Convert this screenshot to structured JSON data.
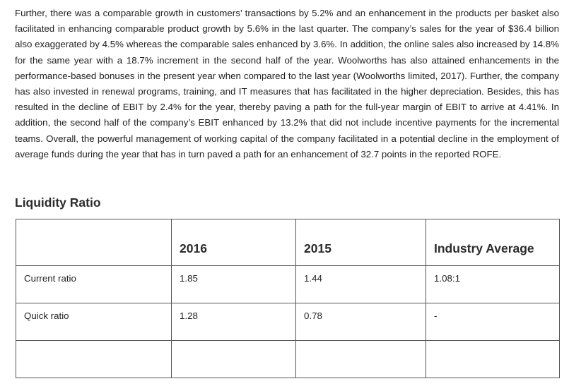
{
  "paragraph": "Further, there was a comparable growth in customers’ transactions by 5.2% and an enhancement in the products per basket also facilitated in enhancing comparable product growth by 5.6% in the last quarter. The company’s sales for the year of $36.4 billion also exaggerated by 4.5% whereas the comparable sales enhanced by 3.6%. In addition, the online sales also increased by 14.8% for the same year with a 18.7% increment in the second half of the year. Woolworths has also attained enhancements in the performance-based bonuses in the present year when compared to the last year (Woolworths limited, 2017). Further, the company has also invested in renewal programs, training, and IT measures that has facilitated in the higher depreciation. Besides, this has resulted in the decline of EBIT by 2.4% for the year, thereby paving a path for the full-year margin of EBIT to arrive at 4.41%. In addition, the second half of the company’s EBIT enhanced by 13.2% that did not include incentive payments for the incremental teams. Overall, the powerful management of working capital of the company facilitated in a potential decline in the employment of average funds during the year that has in turn paved a path for an enhancement of 32.7 points in the reported ROFE.",
  "section_heading": "Liquidity Ratio",
  "table": {
    "headers": [
      "",
      "2016",
      "2015",
      "Industry Average"
    ],
    "rows": [
      [
        "Current ratio",
        "1.85",
        "1.44",
        "1.08:1"
      ],
      [
        "Quick ratio",
        "1.28",
        "0.78",
        "-"
      ],
      [
        "",
        "",
        "",
        ""
      ]
    ]
  }
}
